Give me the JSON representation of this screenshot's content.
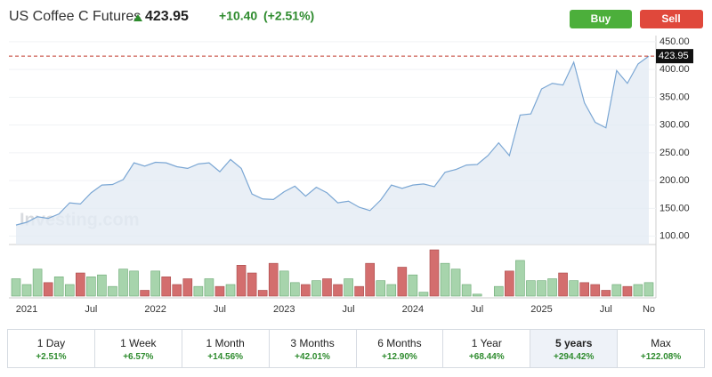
{
  "header": {
    "title": "US Coffee C Futures",
    "price": "423.95",
    "change": "+10.40",
    "change_pct": "(+2.51%)",
    "buy": "Buy",
    "sell": "Sell"
  },
  "chart_data": {
    "type": "area",
    "watermark": "Investing.com",
    "color": "#7ba7d4",
    "categories": [
      null,
      "2021",
      null,
      null,
      null,
      null,
      null,
      "Jul",
      null,
      null,
      null,
      null,
      null,
      "2022",
      null,
      null,
      null,
      null,
      null,
      "Jul",
      null,
      null,
      null,
      null,
      null,
      "2023",
      null,
      null,
      null,
      null,
      null,
      "Jul",
      null,
      null,
      null,
      null,
      null,
      "2024",
      null,
      null,
      null,
      null,
      null,
      "Jul",
      null,
      null,
      null,
      null,
      null,
      "2025",
      null,
      null,
      null,
      null,
      null,
      "Jul",
      null,
      null,
      null,
      "No"
    ],
    "values": [
      120,
      125,
      135,
      132,
      140,
      160,
      158,
      178,
      192,
      193,
      202,
      232,
      226,
      233,
      232,
      225,
      222,
      230,
      232,
      216,
      238,
      222,
      176,
      167,
      166,
      180,
      190,
      172,
      188,
      178,
      160,
      163,
      152,
      146,
      165,
      192,
      186,
      192,
      194,
      189,
      215,
      220,
      228,
      229,
      245,
      268,
      245,
      318,
      320,
      365,
      375,
      372,
      413,
      340,
      305,
      295,
      398,
      375,
      410,
      423.95
    ],
    "volume": [
      18,
      12,
      28,
      14,
      20,
      12,
      24,
      20,
      22,
      10,
      28,
      26,
      6,
      26,
      20,
      12,
      18,
      10,
      18,
      10,
      12,
      32,
      24,
      6,
      34,
      26,
      14,
      12,
      16,
      18,
      12,
      18,
      10,
      34,
      16,
      12,
      30,
      22,
      4,
      48,
      34,
      28,
      12,
      2,
      0,
      10,
      26,
      37,
      16,
      16,
      18,
      24,
      16,
      14,
      12,
      6,
      12,
      10,
      12,
      14
    ],
    "ylim": [
      85,
      461
    ],
    "yticks": [
      {
        "value": 100,
        "label": "100.00"
      },
      {
        "value": 150,
        "label": "150.00"
      },
      {
        "value": 200,
        "label": "200.00"
      },
      {
        "value": 250,
        "label": "250.00"
      },
      {
        "value": 300,
        "label": "300.00"
      },
      {
        "value": 350,
        "label": "350.00"
      },
      {
        "value": 400,
        "label": "400.00"
      },
      {
        "value": 450,
        "label": "450.00"
      }
    ],
    "grid": true,
    "up_color": "#a7d4ac",
    "down_color": "#d36e6e"
  },
  "ranges": [
    {
      "label": "1 Day",
      "change": "+2.51%"
    },
    {
      "label": "1 Week",
      "change": "+6.57%"
    },
    {
      "label": "1 Month",
      "change": "+14.56%"
    },
    {
      "label": "3 Months",
      "change": "+42.01%"
    },
    {
      "label": "6 Months",
      "change": "+12.90%"
    },
    {
      "label": "1 Year",
      "change": "+68.44%"
    },
    {
      "label": "5 years",
      "change": "+294.42%",
      "selected": true
    },
    {
      "label": "Max",
      "change": "+122.08%"
    }
  ]
}
